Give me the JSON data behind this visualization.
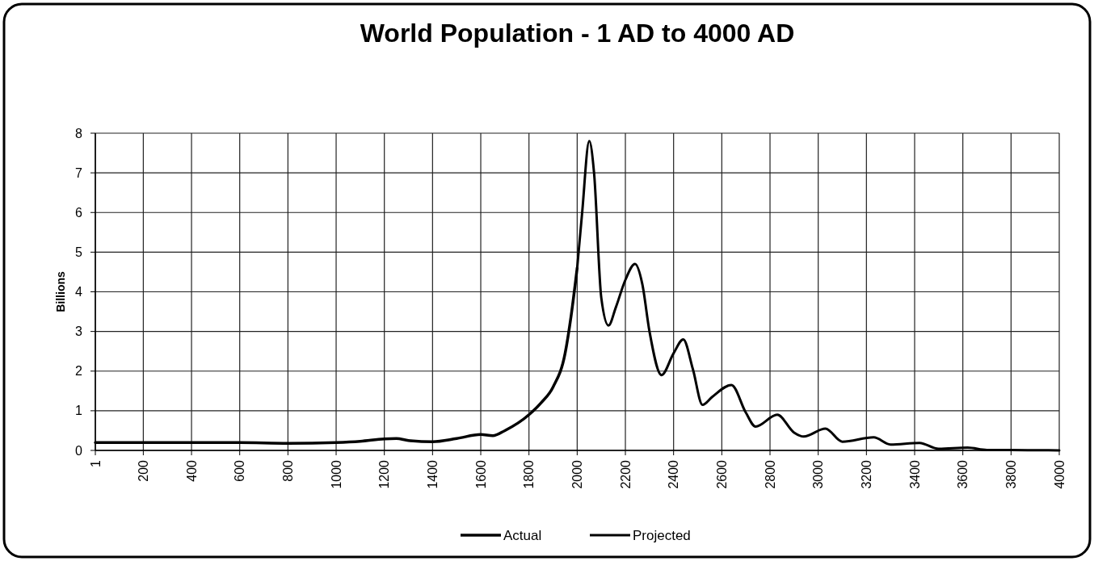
{
  "chart_data": {
    "type": "line",
    "title": "World Population - 1 AD to 4000 AD",
    "ylabel": "Billions",
    "xlim": [
      1,
      4000
    ],
    "xticks": [
      1,
      200,
      400,
      600,
      800,
      1000,
      1200,
      1400,
      1600,
      1800,
      2000,
      2200,
      2400,
      2600,
      2800,
      3000,
      3200,
      3400,
      3600,
      3800,
      4000
    ],
    "ylim": [
      0,
      8
    ],
    "yticks": [
      0,
      1,
      2,
      3,
      4,
      5,
      6,
      7,
      8
    ],
    "grid": true,
    "legend": "bottom",
    "series": [
      {
        "name": "Actual",
        "color": "#000000",
        "x": [
          1,
          200,
          400,
          600,
          800,
          1000,
          1100,
          1200,
          1250,
          1300,
          1400,
          1500,
          1600,
          1650,
          1700,
          1800,
          1850,
          1900,
          1950,
          1975,
          2000
        ],
        "values": [
          0.2,
          0.2,
          0.2,
          0.2,
          0.18,
          0.2,
          0.23,
          0.29,
          0.3,
          0.25,
          0.22,
          0.3,
          0.4,
          0.37,
          0.5,
          0.9,
          1.2,
          1.6,
          2.45,
          3.4,
          4.6
        ]
      },
      {
        "name": "Projected",
        "color": "#000000",
        "x": [
          2000,
          2020,
          2050,
          2070,
          2100,
          2130,
          2160,
          2200,
          2240,
          2270,
          2300,
          2350,
          2400,
          2440,
          2480,
          2520,
          2560,
          2640,
          2700,
          2740,
          2830,
          2900,
          2940,
          3030,
          3100,
          3230,
          3300,
          3420,
          3500,
          3620,
          3700,
          3800,
          4000
        ],
        "values": [
          4.6,
          5.95,
          7.8,
          7.0,
          3.85,
          3.15,
          3.6,
          4.3,
          4.7,
          4.2,
          3.0,
          1.9,
          2.45,
          2.8,
          2.05,
          1.15,
          1.35,
          1.65,
          0.95,
          0.6,
          0.9,
          0.45,
          0.35,
          0.55,
          0.22,
          0.33,
          0.15,
          0.19,
          0.04,
          0.07,
          0.01,
          0.01,
          0
        ]
      }
    ]
  }
}
